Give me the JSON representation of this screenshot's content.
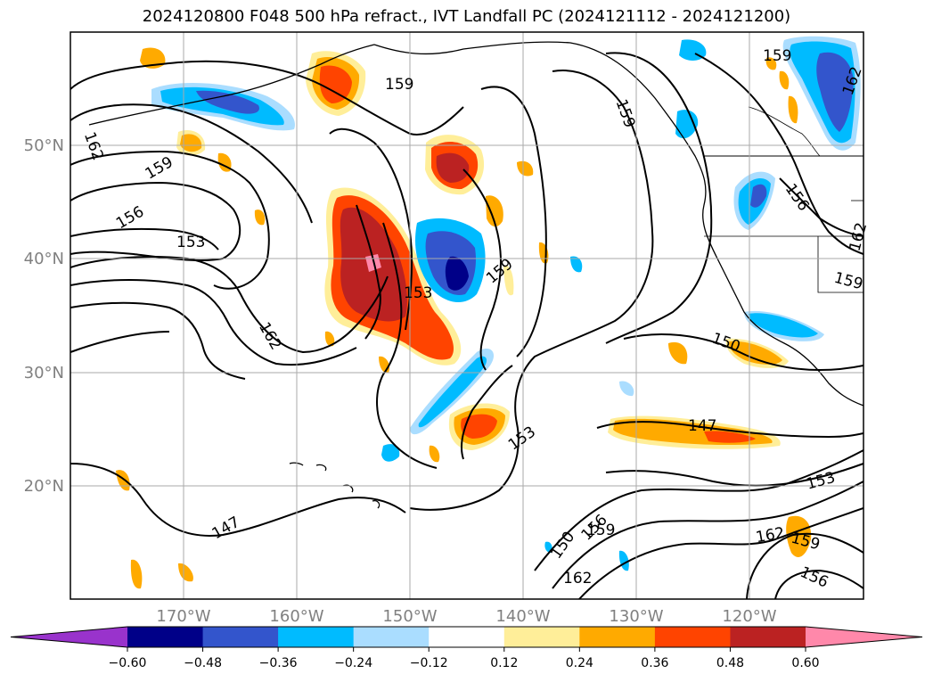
{
  "title": "2024120800 F048 500 hPa refract., IVT Landfall PC (2024121112 - 2024121200)",
  "map": {
    "lat_labels": [
      "50°N",
      "40°N",
      "30°N",
      "20°N"
    ],
    "lon_labels": [
      "170°W",
      "160°W",
      "150°W",
      "140°W",
      "130°W",
      "120°W"
    ],
    "contour_labels": [
      {
        "text": "159",
        "id": "c1"
      },
      {
        "text": "162",
        "id": "c2"
      },
      {
        "text": "159",
        "id": "c3"
      },
      {
        "text": "156",
        "id": "c4"
      },
      {
        "text": "153",
        "id": "c5"
      },
      {
        "text": "153",
        "id": "c6"
      },
      {
        "text": "162",
        "id": "c7"
      },
      {
        "text": "159",
        "id": "c8"
      },
      {
        "text": "159",
        "id": "c9"
      },
      {
        "text": "159",
        "id": "c10"
      },
      {
        "text": "162",
        "id": "c11"
      },
      {
        "text": "156",
        "id": "c12"
      },
      {
        "text": "162",
        "id": "c13"
      },
      {
        "text": "159",
        "id": "c14"
      },
      {
        "text": "150",
        "id": "c15"
      },
      {
        "text": "153",
        "id": "c16"
      },
      {
        "text": "147",
        "id": "c17"
      },
      {
        "text": "153",
        "id": "c18"
      },
      {
        "text": "147",
        "id": "c19"
      },
      {
        "text": "150",
        "id": "c20"
      },
      {
        "text": "156",
        "id": "c21"
      },
      {
        "text": "159",
        "id": "c22"
      },
      {
        "text": "162",
        "id": "c23"
      },
      {
        "text": "162",
        "id": "c24"
      },
      {
        "text": "159",
        "id": "c25"
      },
      {
        "text": "156",
        "id": "c26"
      }
    ]
  },
  "colorbar": {
    "ticks": [
      "−0.60",
      "−0.48",
      "−0.36",
      "−0.24",
      "−0.12",
      "0.12",
      "0.24",
      "0.36",
      "0.48",
      "0.60"
    ],
    "colors": [
      "#9933cc",
      "#000088",
      "#3355cc",
      "#00bbff",
      "#aaddff",
      "#ffffff",
      "#ffee99",
      "#ffaa00",
      "#ff4400",
      "#bb2222",
      "#ff88aa"
    ]
  }
}
